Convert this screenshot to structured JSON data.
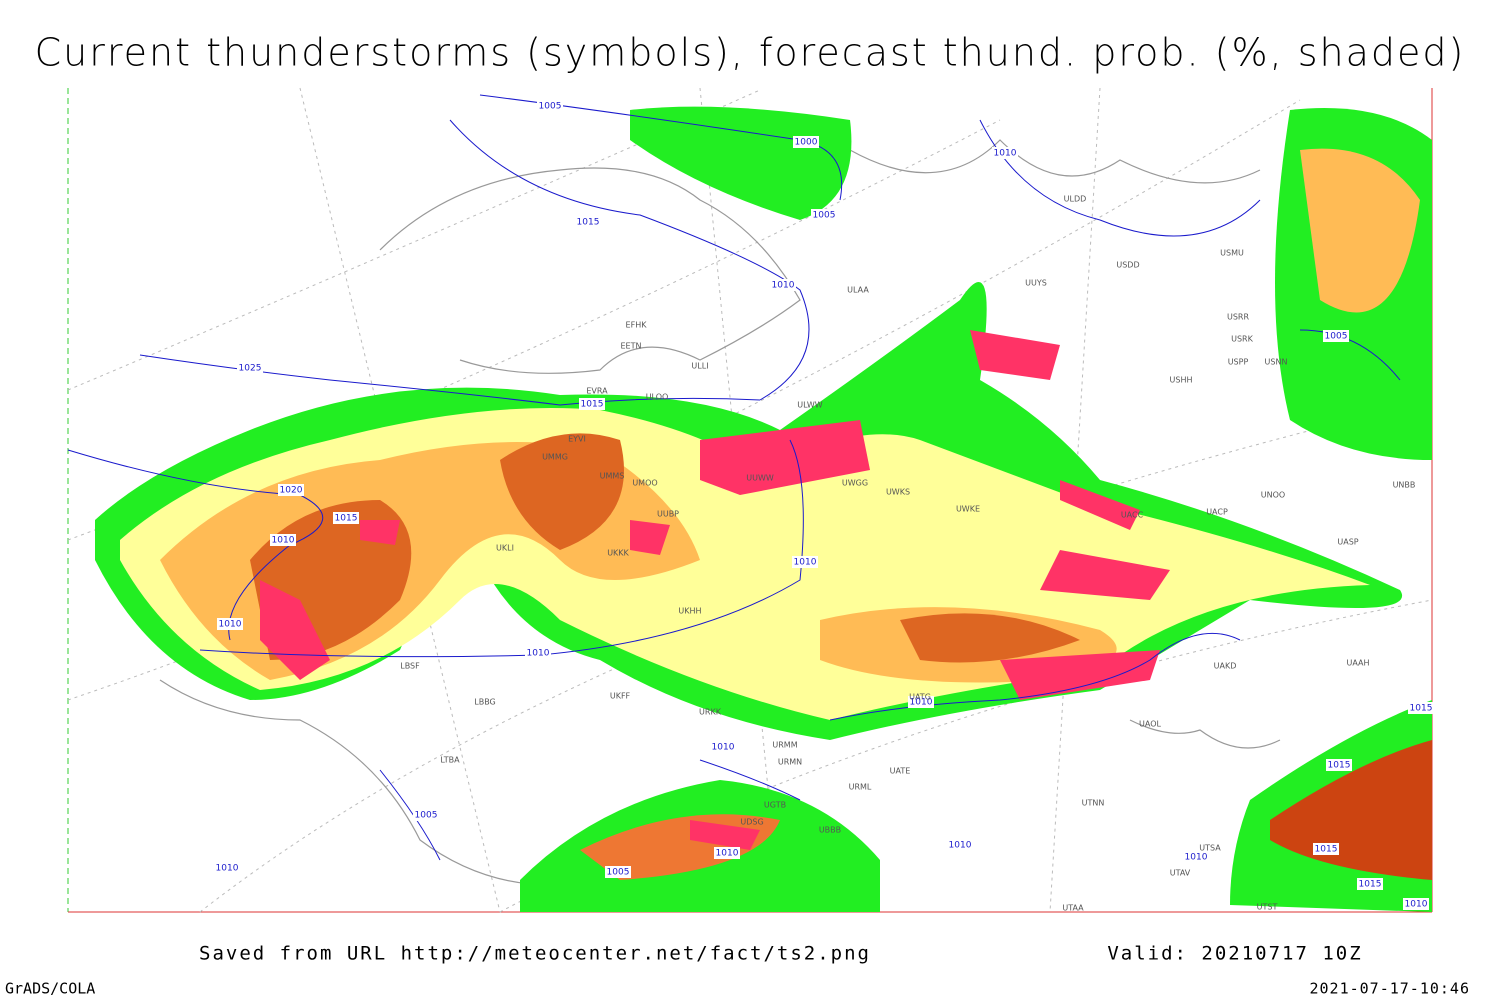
{
  "title": "Current thunderstorms (symbols), forecast thund. prob. (%, shaded)",
  "footer": {
    "saved_from": "Saved from URL http://meteocenter.net/fact/ts2.png",
    "valid": "Valid: 20210717 10Z",
    "software": "GrADS/COLA",
    "timestamp": "2021-07-17-10:46"
  },
  "isobar_labels": [
    "1005",
    "1000",
    "1005",
    "1015",
    "1010",
    "1010",
    "1025",
    "1015",
    "1020",
    "1015",
    "1010",
    "1010",
    "1010",
    "1010",
    "1010",
    "1010",
    "1005",
    "1010",
    "1005",
    "1010",
    "1010",
    "1005",
    "1015",
    "1015",
    "1015",
    "1015",
    "1010",
    "1010"
  ],
  "station_labels": [
    "ULDD",
    "USDD",
    "USMU",
    "UUYS",
    "ULAA",
    "EFHK",
    "EETN",
    "ULLI",
    "EVRA",
    "ULOO",
    "UMMG",
    "UMMS",
    "UMOO",
    "UUBP",
    "UKLI",
    "UKKK",
    "UKHH",
    "ULWW",
    "UUWW",
    "UWGG",
    "UWKS",
    "UWKE",
    "UACC",
    "UACP",
    "UNOO",
    "UNBB",
    "UASP",
    "UAKD",
    "UAAH",
    "UATG",
    "UAOL",
    "URMM",
    "URMN",
    "UATE",
    "URML",
    "UTNN",
    "UGTB",
    "UBBB",
    "UDSG",
    "UTSA",
    "UTAV",
    "UTAA",
    "UTST",
    "LBSF",
    "LBBG",
    "LTBA",
    "UKFF",
    "URKK",
    "EYVI",
    "USRR",
    "USRK",
    "USPP",
    "USNN",
    "USHH"
  ]
}
